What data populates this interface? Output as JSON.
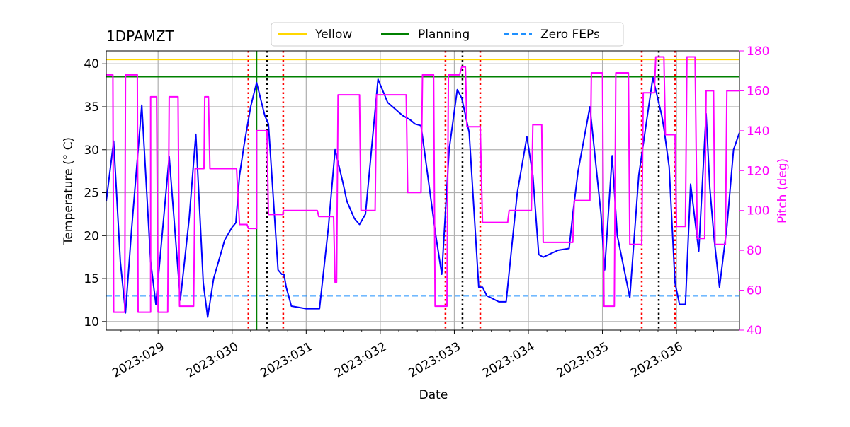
{
  "chart_data": {
    "type": "line",
    "title": "1DPAMZT",
    "xlabel": "Date",
    "ylabel_left": "Temperature ($^\\circ$C)",
    "ylabel_left_display": "Temperature (° C)",
    "ylabel_right": "Pitch (deg)",
    "xlim": [
      28.3,
      36.85
    ],
    "ylim_left": [
      9,
      41.5
    ],
    "ylim_right": [
      40,
      180
    ],
    "x_ticks": [
      29,
      30,
      31,
      32,
      33,
      34,
      35,
      36
    ],
    "x_tick_labels": [
      "2023:029",
      "2023:030",
      "2023:031",
      "2023:032",
      "2023:033",
      "2023:034",
      "2023:035",
      "2023:036"
    ],
    "y_ticks_left": [
      10,
      15,
      20,
      25,
      30,
      35,
      40
    ],
    "y_ticks_right": [
      40,
      60,
      80,
      100,
      120,
      140,
      160,
      180
    ],
    "grid": true,
    "legend": {
      "placement": "top-center",
      "entries": [
        {
          "label": "Yellow",
          "color": "#ffd700",
          "style": "solid"
        },
        {
          "label": "Planning",
          "color": "#008000",
          "style": "solid"
        },
        {
          "label": "Zero FEPs",
          "color": "#1e90ff",
          "style": "dashed"
        }
      ]
    },
    "hlines": [
      {
        "name": "Yellow",
        "y": 40.5,
        "color": "#ffd700"
      },
      {
        "name": "Planning",
        "y": 38.5,
        "color": "#008000"
      },
      {
        "name": "Zero FEPs",
        "y": 13.0,
        "color": "#1e90ff"
      }
    ],
    "vlines": [
      {
        "x": 30.33,
        "color": "#008000",
        "style": "solid"
      },
      {
        "x": 30.22,
        "color": "#ff0000",
        "style": "dotted"
      },
      {
        "x": 30.69,
        "color": "#ff0000",
        "style": "dotted"
      },
      {
        "x": 32.88,
        "color": "#ff0000",
        "style": "dotted"
      },
      {
        "x": 33.35,
        "color": "#ff0000",
        "style": "dotted"
      },
      {
        "x": 35.53,
        "color": "#ff0000",
        "style": "dotted"
      },
      {
        "x": 35.98,
        "color": "#ff0000",
        "style": "dotted"
      },
      {
        "x": 30.47,
        "color": "#000000",
        "style": "dotted"
      },
      {
        "x": 33.11,
        "color": "#000000",
        "style": "dotted"
      },
      {
        "x": 35.76,
        "color": "#000000",
        "style": "dotted"
      }
    ],
    "series": [
      {
        "axis": "left",
        "color": "#0000ff",
        "x": [
          28.3,
          28.4,
          28.49,
          28.56,
          28.64,
          28.78,
          28.9,
          28.97,
          29.15,
          29.3,
          29.42,
          29.51,
          29.61,
          29.67,
          29.75,
          29.9,
          30.0,
          30.05,
          30.1,
          30.16,
          30.25,
          30.33,
          30.44,
          30.49,
          30.62,
          30.67,
          30.7,
          30.73,
          30.8,
          31.0,
          31.18,
          31.3,
          31.39,
          31.5,
          31.55,
          31.65,
          31.72,
          31.8,
          31.97,
          32.1,
          32.3,
          32.4,
          32.47,
          32.55,
          32.75,
          32.83,
          32.93,
          33.04,
          33.1,
          33.2,
          33.33,
          33.38,
          33.44,
          33.6,
          33.7,
          33.85,
          33.98,
          34.06,
          34.14,
          34.2,
          34.4,
          34.55,
          34.6,
          34.67,
          34.83,
          34.98,
          35.03,
          35.13,
          35.2,
          35.37,
          35.49,
          35.68,
          35.8,
          35.83,
          35.9,
          35.98,
          36.04,
          36.12,
          36.19,
          36.3,
          36.4,
          36.45,
          36.51,
          36.58,
          36.68,
          36.77,
          36.85
        ],
        "y": [
          24.0,
          31.0,
          17.0,
          11.0,
          20.5,
          35.2,
          17.0,
          12.0,
          29.2,
          12.5,
          22.0,
          31.8,
          14.5,
          10.5,
          15.0,
          19.5,
          21.0,
          21.5,
          27.0,
          30.5,
          35.0,
          37.8,
          34.0,
          33.0,
          16.0,
          15.5,
          15.5,
          14.0,
          11.8,
          11.5,
          11.5,
          21.0,
          30.0,
          26.0,
          24.0,
          22.0,
          21.3,
          22.5,
          38.2,
          35.5,
          34.0,
          33.5,
          33.0,
          32.8,
          20.0,
          15.5,
          30.0,
          37.0,
          36.0,
          32.0,
          14.0,
          14.0,
          13.0,
          12.3,
          12.3,
          25.0,
          31.5,
          27.0,
          17.8,
          17.5,
          18.3,
          18.5,
          22.5,
          27.5,
          35.0,
          22.5,
          16.0,
          29.3,
          20.0,
          12.8,
          27.0,
          38.4,
          34.0,
          32.5,
          28.0,
          14.5,
          12.0,
          12.0,
          26.0,
          18.2,
          34.2,
          25.5,
          19.5,
          14.0,
          21.0,
          30.0,
          32.0
        ]
      },
      {
        "axis": "right",
        "color": "#ff00ff",
        "x": [
          28.3,
          28.39,
          28.4,
          28.55,
          28.56,
          28.72,
          28.73,
          28.9,
          28.9,
          28.98,
          29.0,
          29.13,
          29.15,
          29.27,
          29.29,
          29.48,
          29.5,
          29.62,
          29.63,
          29.68,
          29.7,
          30.06,
          30.1,
          30.2,
          30.22,
          30.33,
          30.33,
          30.47,
          30.49,
          30.69,
          30.69,
          31.15,
          31.17,
          31.37,
          31.39,
          31.41,
          31.43,
          31.72,
          31.74,
          31.93,
          31.95,
          32.35,
          32.37,
          32.55,
          32.57,
          32.72,
          32.74,
          32.9,
          32.92,
          33.07,
          33.1,
          33.15,
          33.17,
          33.35,
          33.38,
          33.72,
          33.74,
          34.04,
          34.06,
          34.18,
          34.2,
          34.6,
          34.62,
          34.83,
          34.85,
          35.0,
          35.02,
          35.16,
          35.18,
          35.35,
          35.37,
          35.53,
          35.55,
          35.7,
          35.72,
          35.83,
          35.85,
          35.98,
          36.0,
          36.12,
          36.14,
          36.25,
          36.28,
          36.38,
          36.4,
          36.5,
          36.52,
          36.66,
          36.68,
          36.85
        ],
        "y": [
          168,
          168,
          49,
          49,
          168,
          168,
          49,
          49,
          157,
          157,
          49,
          49,
          157,
          157,
          52,
          52,
          121,
          121,
          157,
          157,
          121,
          121,
          93,
          93,
          91,
          91,
          140,
          140,
          98,
          98,
          100,
          100,
          97,
          97,
          64,
          64,
          158,
          158,
          100,
          100,
          158,
          158,
          109,
          109,
          168,
          168,
          52,
          52,
          168,
          168,
          172,
          172,
          142,
          142,
          94,
          94,
          100,
          100,
          143,
          143,
          84,
          84,
          105,
          105,
          169,
          169,
          52,
          52,
          169,
          169,
          83,
          83,
          159,
          159,
          177,
          177,
          138,
          138,
          92,
          92,
          177,
          177,
          86,
          86,
          160,
          160,
          83,
          83,
          160,
          160
        ]
      }
    ]
  }
}
